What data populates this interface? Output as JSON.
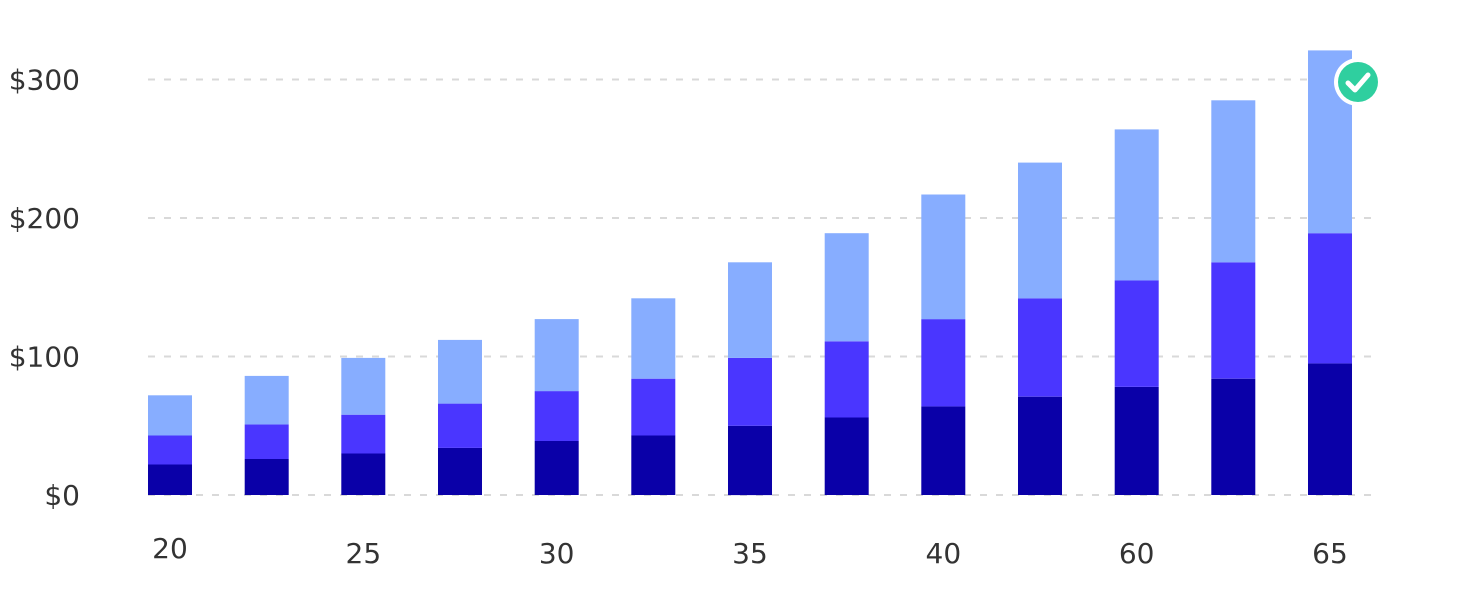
{
  "chart_data": {
    "type": "bar",
    "stacked": true,
    "categories": [
      "20",
      "",
      "25",
      "",
      "30",
      "",
      "35",
      "",
      "40",
      "",
      "60",
      "",
      "65"
    ],
    "series": [
      {
        "values": [
          22,
          26,
          30,
          34,
          39,
          43,
          50,
          56,
          64,
          71,
          78,
          84,
          95
        ]
      },
      {
        "values": [
          21,
          25,
          28,
          32,
          36,
          41,
          49,
          55,
          63,
          71,
          77,
          84,
          94
        ]
      },
      {
        "values": [
          29,
          35,
          41,
          46,
          52,
          58,
          69,
          78,
          90,
          98,
          109,
          117,
          132
        ]
      }
    ],
    "yticks": [
      "$0",
      "$100",
      "$200",
      "$300"
    ],
    "ylim": [
      0,
      320
    ],
    "grid": true,
    "colors": [
      "#0a00a8",
      "#4a36ff",
      "#87adff"
    ],
    "marker": {
      "category_index": 12,
      "icon": "check-circle-icon",
      "color": "#2fcf9f"
    }
  }
}
